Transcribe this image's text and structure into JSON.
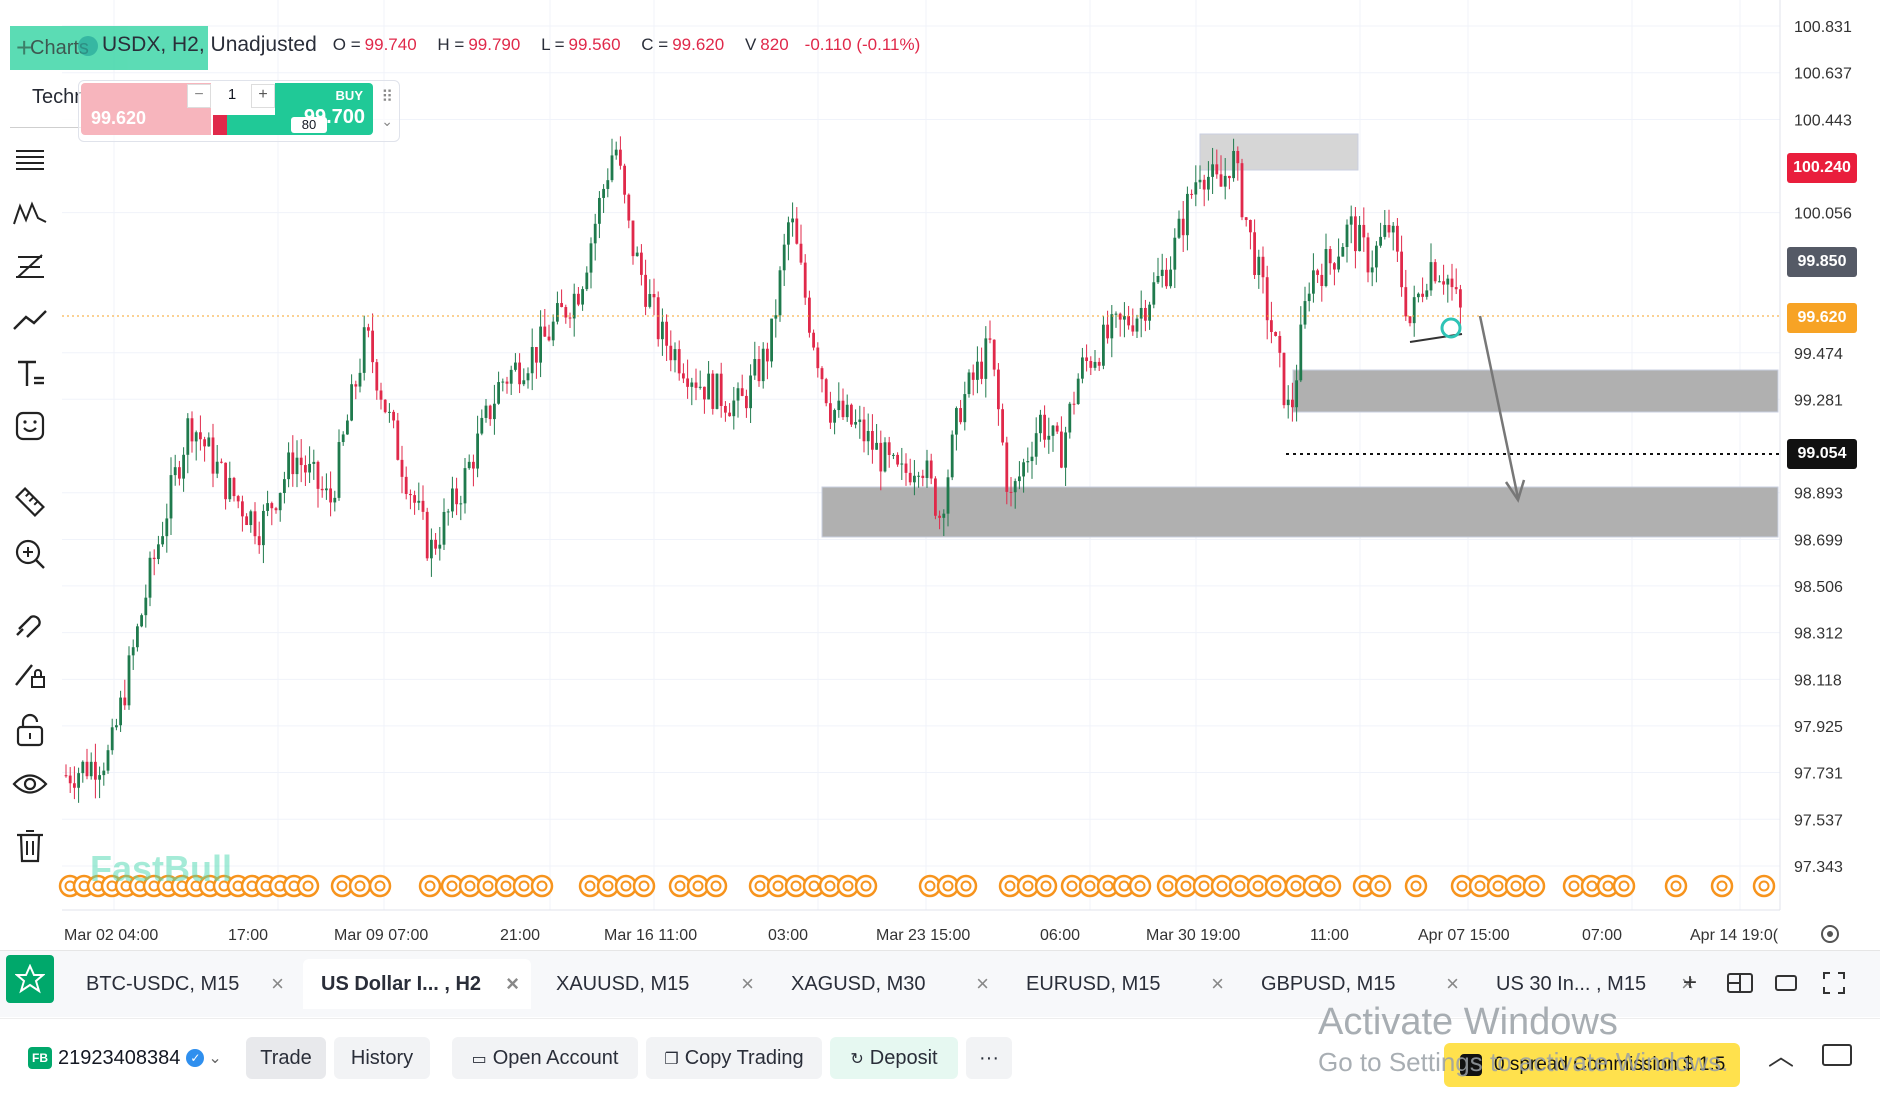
{
  "legend": {
    "charts_tab": "Charts",
    "technicals_tab": "Technicals",
    "symbol": "USDX, H2, Unadjusted",
    "o_label": "O =",
    "o": "99.740",
    "h_label": "H =",
    "h": "99.790",
    "l_label": "L =",
    "l": "99.560",
    "c_label": "C =",
    "c": "99.620",
    "v_label": "V",
    "v": "820",
    "change": "-0.110 (-0.11%)"
  },
  "order_widget": {
    "sell_price": "99.620",
    "buy_label": "BUY",
    "buy_price": "99.700",
    "quantity": "1",
    "minus": "−",
    "plus": "+",
    "spread": "80"
  },
  "price_axis": {
    "labels": [
      "100.831",
      "100.637",
      "100.443",
      "100.056",
      "99.474",
      "99.281",
      "98.893",
      "98.699",
      "98.506",
      "98.312",
      "98.118",
      "97.925",
      "97.731",
      "97.537",
      "97.343"
    ],
    "tags": [
      {
        "value": "100.240",
        "color": "#e91e3c"
      },
      {
        "value": "99.850",
        "color": "#555a66"
      },
      {
        "value": "99.620",
        "color": "#f7a325"
      },
      {
        "value": "99.054",
        "color": "#111111"
      }
    ]
  },
  "time_axis": [
    "Mar 02 04:00",
    "17:00",
    "Mar 09 07:00",
    "21:00",
    "Mar 16 11:00",
    "03:00",
    "Mar 23 15:00",
    "06:00",
    "Mar 30 19:00",
    "11:00",
    "Apr 07 15:00",
    "07:00",
    "Apr 14 19:0("
  ],
  "watermark": "FastBull",
  "chart_data": {
    "type": "candlestick",
    "symbol": "USDX",
    "timeframe": "H2",
    "y_range": [
      97.25,
      100.92
    ],
    "last_close": 99.62,
    "zones": [
      {
        "from": 100.16,
        "to": 100.32,
        "shade": "light"
      },
      {
        "from": 99.15,
        "to": 99.34,
        "shade": "dark"
      },
      {
        "from": 98.68,
        "to": 98.9,
        "shade": "dark"
      }
    ],
    "dotted_level": 99.054
  },
  "tabs": [
    {
      "label": "BTC-USDC, M15",
      "active": false
    },
    {
      "label": "US Dollar I... , H2",
      "active": true
    },
    {
      "label": "XAUUSD, M15",
      "active": false
    },
    {
      "label": "XAGUSD, M30",
      "active": false
    },
    {
      "label": "EURUSD, M15",
      "active": false
    },
    {
      "label": "GBPUSD, M15",
      "active": false
    },
    {
      "label": "US 30 In...  , M15",
      "active": false
    }
  ],
  "tab_close": "×",
  "bottom": {
    "account_badge": "FB",
    "account_id": "21923408384",
    "trade": "Trade",
    "history": "History",
    "open_account": "Open Account",
    "copy_trading": "Copy Trading",
    "deposit": "Deposit",
    "more": "···",
    "promo": "0 spread Commission $ 1.5"
  },
  "activate": {
    "line1": "Activate Windows",
    "line2": "Go to Settings to activate Windows."
  },
  "colors": {
    "up": "#1f7a4d",
    "down": "#e0294a",
    "accent": "#00a86b"
  }
}
